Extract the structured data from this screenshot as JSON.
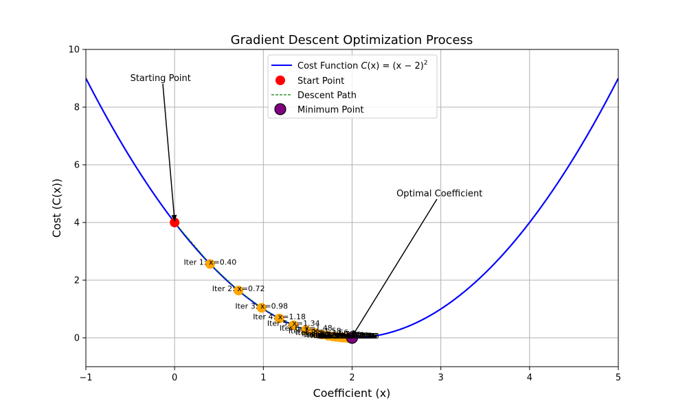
{
  "chart_data": {
    "type": "line",
    "title": "Gradient Descent Optimization Process",
    "xlabel": "Coefficient (x)",
    "ylabel": "Cost (C(x))",
    "xlim": [
      -1,
      5
    ],
    "ylim": [
      -1,
      10
    ],
    "xticks": [
      "−1",
      "0",
      "1",
      "2",
      "3",
      "4",
      "5"
    ],
    "yticks": [
      "0",
      "2",
      "4",
      "6",
      "8",
      "10"
    ],
    "xtick_values": [
      -1,
      0,
      1,
      2,
      3,
      4,
      5
    ],
    "ytick_values": [
      0,
      2,
      4,
      6,
      8,
      10
    ],
    "grid": true,
    "legend_position": "upper-center",
    "cost_function": {
      "name": "Cost Function",
      "math_c": "C",
      "math_x": "(x)",
      "math_rhs": " = (x − 2)",
      "math_sup": "2",
      "color": "#0000ff",
      "x_start": -1,
      "x_end": 5
    },
    "start_point": {
      "name": "Start Point",
      "x": 0,
      "y": 4,
      "color": "#ff0000"
    },
    "descent_path": {
      "name": "Descent Path",
      "color": "#008000"
    },
    "minimum_point": {
      "name": "Minimum Point",
      "x": 2,
      "y": 0,
      "color": "#800080"
    },
    "iteration_color": "#ffa500",
    "iterations": [
      {
        "x": 0.4,
        "label": "Iter 1: x=0.40"
      },
      {
        "x": 0.72,
        "label": "Iter 2: x=0.72"
      },
      {
        "x": 0.98,
        "label": "Iter 3: x=0.98"
      },
      {
        "x": 1.18,
        "label": "Iter 4: x=1.18"
      },
      {
        "x": 1.34,
        "label": "Iter 5: x=1.34"
      },
      {
        "x": 1.48,
        "label": "Iter 6: x=1.48"
      },
      {
        "x": 1.58,
        "label": "Iter 7: x=1.58"
      },
      {
        "x": 1.66,
        "label": "Iter 8: x=1.66"
      },
      {
        "x": 1.73,
        "label": "Iter 9: x=1.73"
      },
      {
        "x": 1.78,
        "label": "Iter 10: x=1.78"
      },
      {
        "x": 1.82,
        "label": "Iter 11: x=1.82"
      },
      {
        "x": 1.86,
        "label": "Iter 12: x=1.86"
      },
      {
        "x": 1.89,
        "label": "Iter 13: x=1.89"
      },
      {
        "x": 1.91,
        "label": "Iter 14: x=1.91"
      },
      {
        "x": 1.93,
        "label": "Iter 15: x=1.93"
      },
      {
        "x": 1.94,
        "label": "Iter 16: x=1.94"
      },
      {
        "x": 1.95,
        "label": "Iter 17: x=1.95"
      },
      {
        "x": 1.96,
        "label": "Iter 18: x=1.96"
      },
      {
        "x": 1.97,
        "label": "Iter 19: x=1.97"
      },
      {
        "x": 1.98,
        "label": "Iter 20: x=1.98"
      }
    ],
    "annotations": [
      {
        "text": "Starting Point",
        "text_x": -0.5,
        "text_y": 9,
        "point_x": 0,
        "point_y": 4
      },
      {
        "text": "Optimal Coefficient",
        "text_x": 2.5,
        "text_y": 5,
        "point_x": 2,
        "point_y": 0
      }
    ]
  }
}
